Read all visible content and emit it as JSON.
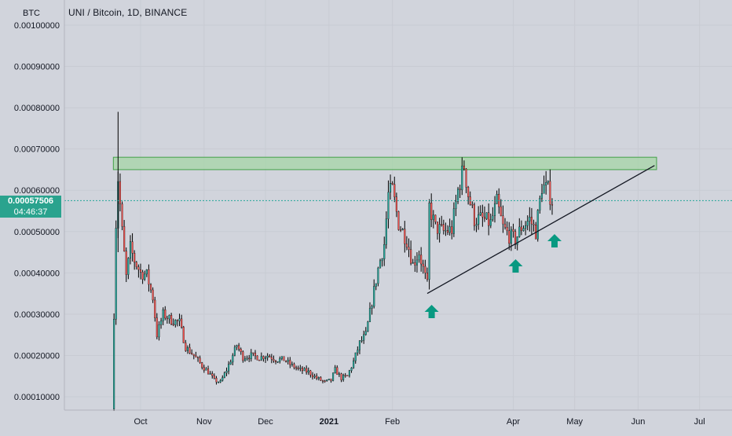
{
  "header": {
    "title": "UNI / Bitcoin, 1D, BINANCE",
    "axis_unit": "BTC"
  },
  "current": {
    "price": "0.00057506",
    "countdown": "04:46:37",
    "value": 0.00057506
  },
  "colors": {
    "background": "#d1d4dc",
    "up_candle": "#26a69a",
    "down_candle": "#ef5350",
    "wick": "#000000",
    "zone_fill": "#a5d6a7",
    "zone_border": "#43a047",
    "trendline": "#131722",
    "arrow": "#089981",
    "price_line": "#26a69a"
  },
  "chart_data": {
    "type": "candlestick",
    "title": "UNI / Bitcoin, 1D, BINANCE",
    "y_unit": "BTC",
    "ylim": [
      7e-05,
      0.00103
    ],
    "y_ticks": [
      "0.00010000",
      "0.00020000",
      "0.00030000",
      "0.00040000",
      "0.00050000",
      "0.00060000",
      "0.00070000",
      "0.00080000",
      "0.00090000",
      "0.00100000"
    ],
    "y_tick_values": [
      0.0001,
      0.0002,
      0.0003,
      0.0004,
      0.0005,
      0.0006,
      0.0007,
      0.0008,
      0.0009,
      0.001
    ],
    "x_range": [
      "2020-09-17",
      "2021-07-12"
    ],
    "x_ticks": [
      {
        "label": "Oct",
        "date": "2020-10-01"
      },
      {
        "label": "Nov",
        "date": "2020-11-01"
      },
      {
        "label": "Dec",
        "date": "2020-12-01"
      },
      {
        "label": "2021",
        "date": "2021-01-01"
      },
      {
        "label": "Feb",
        "date": "2021-02-01"
      },
      {
        "label": "Apr",
        "date": "2021-04-01"
      },
      {
        "label": "May",
        "date": "2021-05-01"
      },
      {
        "label": "Jun",
        "date": "2021-06-01"
      },
      {
        "label": "Jul",
        "date": "2021-07-01"
      }
    ],
    "close_path": [
      [
        "2020-09-17",
        7e-05
      ],
      [
        "2020-09-18",
        0.0003
      ],
      [
        "2020-09-19",
        0.00052
      ],
      [
        "2020-09-20",
        0.00063
      ],
      [
        "2020-09-22",
        0.0005
      ],
      [
        "2020-09-24",
        0.00039
      ],
      [
        "2020-09-26",
        0.00046
      ],
      [
        "2020-09-28",
        0.00043
      ],
      [
        "2020-10-01",
        0.0004
      ],
      [
        "2020-10-04",
        0.000395
      ],
      [
        "2020-10-07",
        0.00034
      ],
      [
        "2020-10-09",
        0.00025
      ],
      [
        "2020-10-12",
        0.0003
      ],
      [
        "2020-10-16",
        0.000285
      ],
      [
        "2020-10-20",
        0.00028
      ],
      [
        "2020-10-23",
        0.00022
      ],
      [
        "2020-10-27",
        0.0002
      ],
      [
        "2020-10-31",
        0.000175
      ],
      [
        "2020-11-03",
        0.00016
      ],
      [
        "2020-11-06",
        0.00014
      ],
      [
        "2020-11-09",
        0.000135
      ],
      [
        "2020-11-12",
        0.000165
      ],
      [
        "2020-11-15",
        0.0002
      ],
      [
        "2020-11-17",
        0.000225
      ],
      [
        "2020-11-20",
        0.000195
      ],
      [
        "2020-11-24",
        0.0002
      ],
      [
        "2020-11-28",
        0.000195
      ],
      [
        "2020-12-02",
        0.0002
      ],
      [
        "2020-12-06",
        0.00019
      ],
      [
        "2020-12-10",
        0.00019
      ],
      [
        "2020-12-14",
        0.000175
      ],
      [
        "2020-12-18",
        0.000165
      ],
      [
        "2020-12-22",
        0.00016
      ],
      [
        "2020-12-26",
        0.000145
      ],
      [
        "2020-12-30",
        0.000135
      ],
      [
        "2021-01-02",
        0.00014
      ],
      [
        "2021-01-04",
        0.000165
      ],
      [
        "2021-01-07",
        0.000145
      ],
      [
        "2021-01-10",
        0.00015
      ],
      [
        "2021-01-13",
        0.000185
      ],
      [
        "2021-01-16",
        0.00023
      ],
      [
        "2021-01-19",
        0.00025
      ],
      [
        "2021-01-22",
        0.00033
      ],
      [
        "2021-01-25",
        0.00041
      ],
      [
        "2021-01-28",
        0.00047
      ],
      [
        "2021-01-30",
        0.00059
      ],
      [
        "2021-02-01",
        0.0006
      ],
      [
        "2021-02-04",
        0.00052
      ],
      [
        "2021-02-08",
        0.00048
      ],
      [
        "2021-02-11",
        0.00042
      ],
      [
        "2021-02-14",
        0.00045
      ],
      [
        "2021-02-18",
        0.00037
      ],
      [
        "2021-02-19",
        0.00056
      ],
      [
        "2021-02-22",
        0.00051
      ],
      [
        "2021-02-26",
        0.0005
      ],
      [
        "2021-03-02",
        0.000505
      ],
      [
        "2021-03-05",
        0.0006
      ],
      [
        "2021-03-08",
        0.00066
      ],
      [
        "2021-03-10",
        0.00059
      ],
      [
        "2021-03-13",
        0.00053
      ],
      [
        "2021-03-17",
        0.00053
      ],
      [
        "2021-03-21",
        0.00052
      ],
      [
        "2021-03-24",
        0.00057
      ],
      [
        "2021-03-27",
        0.00051
      ],
      [
        "2021-03-30",
        0.00049
      ],
      [
        "2021-04-02",
        0.00048
      ],
      [
        "2021-04-05",
        0.00051
      ],
      [
        "2021-04-09",
        0.00053
      ],
      [
        "2021-04-12",
        0.0005
      ],
      [
        "2021-04-15",
        0.00061
      ],
      [
        "2021-04-18",
        0.0006
      ],
      [
        "2021-04-20",
        0.000575
      ]
    ],
    "resistance_zone": {
      "y_from": 0.00065,
      "y_to": 0.00068,
      "x_from": "2020-09-20",
      "x_to": "2021-06-10"
    },
    "trendline": {
      "from": [
        "2021-02-18",
        0.00035
      ],
      "to": [
        "2021-06-09",
        0.00066
      ]
    },
    "support_arrows": [
      "2021-02-19",
      "2021-04-01",
      "2021-04-20"
    ]
  }
}
